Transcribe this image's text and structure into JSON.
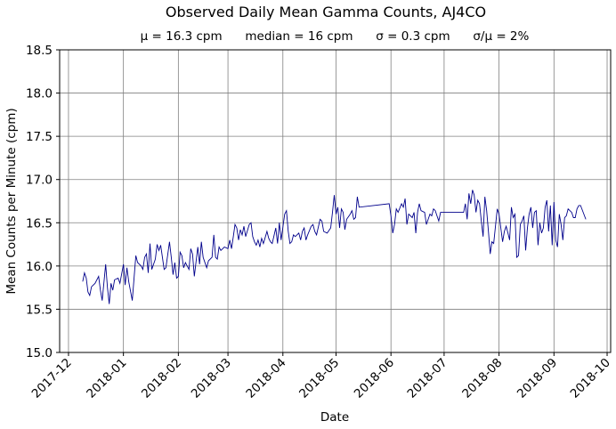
{
  "chart_data": {
    "type": "line",
    "title": "Observed Daily Mean Gamma Counts, AJ4CO",
    "subtitle": "μ = 16.3 cpm      median = 16 cpm      σ = 0.3 cpm      σ/μ = 2%",
    "xlabel": "Date",
    "ylabel": "Mean Counts per Minute (cpm)",
    "xlim": [
      "2017-11-26",
      "2018-10-03"
    ],
    "ylim": [
      15.0,
      18.5
    ],
    "yticks": [
      "15.0",
      "15.5",
      "16.0",
      "16.5",
      "17.0",
      "17.5",
      "18.0",
      "18.5"
    ],
    "xticks": [
      "2017-12",
      "2018-01",
      "2018-02",
      "2018-03",
      "2018-04",
      "2018-05",
      "2018-06",
      "2018-07",
      "2018-08",
      "2018-09",
      "2018-10"
    ],
    "grid": true,
    "line_color": "#00008b",
    "series": [
      {
        "x": [
          "2017-12-09",
          "2017-12-10",
          "2017-12-11",
          "2017-12-12",
          "2017-12-13",
          "2017-12-14",
          "2017-12-16",
          "2017-12-18",
          "2017-12-19",
          "2017-12-20",
          "2017-12-22",
          "2017-12-23",
          "2017-12-24",
          "2017-12-25",
          "2017-12-26",
          "2017-12-27",
          "2017-12-29",
          "2017-12-30",
          "2018-01-01",
          "2018-01-02",
          "2018-01-03",
          "2018-01-04",
          "2018-01-06",
          "2018-01-08",
          "2018-01-09",
          "2018-01-11",
          "2018-01-12",
          "2018-01-13",
          "2018-01-14",
          "2018-01-15",
          "2018-01-16",
          "2018-01-17",
          "2018-01-19",
          "2018-01-20",
          "2018-01-21",
          "2018-01-22",
          "2018-01-24",
          "2018-01-25",
          "2018-01-27",
          "2018-01-28",
          "2018-01-29",
          "2018-01-30",
          "2018-01-31",
          "2018-02-01",
          "2018-02-02",
          "2018-02-03",
          "2018-02-04",
          "2018-02-05",
          "2018-02-07",
          "2018-02-08",
          "2018-02-09",
          "2018-02-10",
          "2018-02-12",
          "2018-02-13",
          "2018-02-14",
          "2018-02-15",
          "2018-02-17",
          "2018-02-18",
          "2018-02-20",
          "2018-02-21",
          "2018-02-22",
          "2018-02-23",
          "2018-02-24",
          "2018-02-25",
          "2018-02-27",
          "2018-03-01",
          "2018-03-02",
          "2018-03-03",
          "2018-03-04",
          "2018-03-05",
          "2018-03-06",
          "2018-03-07",
          "2018-03-08",
          "2018-03-09",
          "2018-03-10",
          "2018-03-11",
          "2018-03-13",
          "2018-03-14",
          "2018-03-15",
          "2018-03-16",
          "2018-03-17",
          "2018-03-18",
          "2018-03-19",
          "2018-03-20",
          "2018-03-21",
          "2018-03-23",
          "2018-03-24",
          "2018-03-25",
          "2018-03-26",
          "2018-03-28",
          "2018-03-29",
          "2018-03-30",
          "2018-03-31",
          "2018-04-02",
          "2018-04-03",
          "2018-04-04",
          "2018-04-05",
          "2018-04-06",
          "2018-04-07",
          "2018-04-08",
          "2018-04-10",
          "2018-04-11",
          "2018-04-12",
          "2018-04-13",
          "2018-04-14",
          "2018-04-15",
          "2018-04-17",
          "2018-04-18",
          "2018-04-19",
          "2018-04-20",
          "2018-04-22",
          "2018-04-23",
          "2018-04-24",
          "2018-04-26",
          "2018-04-28",
          "2018-04-29",
          "2018-04-30",
          "2018-05-01",
          "2018-05-02",
          "2018-05-03",
          "2018-05-04",
          "2018-05-05",
          "2018-05-06",
          "2018-05-07",
          "2018-05-09",
          "2018-05-10",
          "2018-05-11",
          "2018-05-12",
          "2018-05-13",
          "2018-05-14",
          "2018-05-31",
          "2018-06-01",
          "2018-06-02",
          "2018-06-03",
          "2018-06-04",
          "2018-06-05",
          "2018-06-07",
          "2018-06-08",
          "2018-06-09",
          "2018-06-10",
          "2018-06-11",
          "2018-06-13",
          "2018-06-14",
          "2018-06-15",
          "2018-06-16",
          "2018-06-17",
          "2018-06-18",
          "2018-06-20",
          "2018-06-21",
          "2018-06-22",
          "2018-06-23",
          "2018-06-24",
          "2018-06-25",
          "2018-06-26",
          "2018-06-27",
          "2018-06-28",
          "2018-06-29",
          "2018-07-12",
          "2018-07-13",
          "2018-07-14",
          "2018-07-15",
          "2018-07-16",
          "2018-07-17",
          "2018-07-18",
          "2018-07-19",
          "2018-07-20",
          "2018-07-21",
          "2018-07-22",
          "2018-07-23",
          "2018-07-24",
          "2018-07-25",
          "2018-07-26",
          "2018-07-27",
          "2018-07-28",
          "2018-07-29",
          "2018-07-31",
          "2018-08-01",
          "2018-08-02",
          "2018-08-03",
          "2018-08-04",
          "2018-08-05",
          "2018-08-06",
          "2018-08-07",
          "2018-08-08",
          "2018-08-09",
          "2018-08-10",
          "2018-08-11",
          "2018-08-12",
          "2018-08-13",
          "2018-08-14",
          "2018-08-15",
          "2018-08-16",
          "2018-08-17",
          "2018-08-18",
          "2018-08-19",
          "2018-08-20",
          "2018-08-21",
          "2018-08-22",
          "2018-08-23",
          "2018-08-24",
          "2018-08-25",
          "2018-08-26",
          "2018-08-27",
          "2018-08-28",
          "2018-08-29",
          "2018-08-30",
          "2018-08-31",
          "2018-09-01",
          "2018-09-02",
          "2018-09-03",
          "2018-09-04",
          "2018-09-05",
          "2018-09-06",
          "2018-09-07",
          "2018-09-08",
          "2018-09-09",
          "2018-09-10",
          "2018-09-11",
          "2018-09-12",
          "2018-09-13",
          "2018-09-14",
          "2018-09-15",
          "2018-09-16",
          "2018-09-19"
        ],
        "y": [
          15.82,
          15.92,
          15.86,
          15.7,
          15.66,
          15.76,
          15.8,
          15.88,
          15.72,
          15.6,
          16.02,
          15.75,
          15.56,
          15.8,
          15.72,
          15.84,
          15.86,
          15.8,
          16.02,
          15.78,
          15.98,
          15.82,
          15.6,
          16.12,
          16.04,
          16.0,
          15.96,
          16.1,
          16.14,
          15.92,
          16.26,
          15.96,
          16.08,
          16.25,
          16.18,
          16.24,
          15.96,
          15.98,
          16.28,
          16.1,
          15.9,
          16.04,
          15.86,
          15.88,
          16.16,
          16.12,
          15.98,
          16.04,
          15.96,
          16.2,
          16.14,
          15.88,
          16.22,
          16.02,
          16.28,
          16.1,
          15.98,
          16.06,
          16.1,
          16.36,
          16.1,
          16.08,
          16.22,
          16.18,
          16.22,
          16.2,
          16.3,
          16.2,
          16.34,
          16.48,
          16.44,
          16.3,
          16.42,
          16.36,
          16.46,
          16.34,
          16.48,
          16.5,
          16.34,
          16.28,
          16.24,
          16.3,
          16.22,
          16.32,
          16.26,
          16.4,
          16.32,
          16.28,
          16.26,
          16.44,
          16.26,
          16.5,
          16.3,
          16.6,
          16.64,
          16.4,
          16.26,
          16.28,
          16.36,
          16.34,
          16.38,
          16.3,
          16.4,
          16.44,
          16.3,
          16.36,
          16.46,
          16.48,
          16.4,
          16.36,
          16.54,
          16.52,
          16.4,
          16.38,
          16.44,
          16.62,
          16.82,
          16.6,
          16.68,
          16.44,
          16.66,
          16.62,
          16.42,
          16.54,
          16.6,
          16.64,
          16.54,
          16.56,
          16.8,
          16.68,
          16.72,
          16.58,
          16.38,
          16.48,
          16.66,
          16.62,
          16.72,
          16.68,
          16.78,
          16.48,
          16.6,
          16.56,
          16.62,
          16.38,
          16.62,
          16.72,
          16.64,
          16.62,
          16.48,
          16.54,
          16.6,
          16.58,
          16.66,
          16.64,
          16.58,
          16.52,
          16.62,
          16.62,
          16.72,
          16.54,
          16.84,
          16.72,
          16.88,
          16.82,
          16.62,
          16.76,
          16.72,
          16.52,
          16.34,
          16.8,
          16.64,
          16.4,
          16.14,
          16.28,
          16.26,
          16.66,
          16.6,
          16.44,
          16.28,
          16.4,
          16.46,
          16.38,
          16.3,
          16.68,
          16.56,
          16.6,
          16.1,
          16.12,
          16.48,
          16.52,
          16.58,
          16.18,
          16.44,
          16.6,
          16.68,
          16.44,
          16.62,
          16.64,
          16.24,
          16.5,
          16.38,
          16.44,
          16.68,
          16.76,
          16.4,
          16.7,
          16.24,
          16.74,
          16.3,
          16.22,
          16.6,
          16.48,
          16.3,
          16.56,
          16.58,
          16.66,
          16.64,
          16.62,
          16.56,
          16.56,
          16.66,
          16.7,
          16.7,
          16.54
        ]
      }
    ]
  }
}
